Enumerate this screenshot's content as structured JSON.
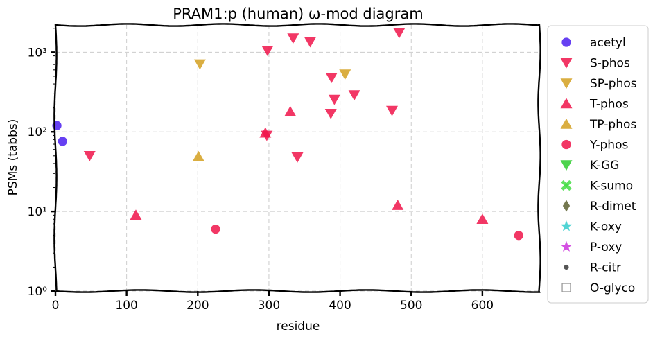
{
  "chart_data": {
    "type": "scatter",
    "title": "PRAM1:p (human) ω-mod diagram",
    "xlabel": "residue",
    "ylabel": "PSMs (tabbs)",
    "xlim": [
      0,
      680
    ],
    "ylim": [
      1,
      2200
    ],
    "yscale": "log",
    "grid": true,
    "legend_position": "right-outside",
    "x_ticks": [
      0,
      100,
      200,
      300,
      400,
      500,
      600
    ],
    "y_ticks": [
      {
        "value": 1,
        "label": "10⁰"
      },
      {
        "value": 10,
        "label": "10¹"
      },
      {
        "value": 100,
        "label": "10²"
      },
      {
        "value": 1000,
        "label": "10³"
      }
    ],
    "series": [
      {
        "name": "acetyl",
        "marker": "circle",
        "color": "#4b1ef0",
        "points": [
          {
            "x": 2,
            "y": 120
          },
          {
            "x": 10,
            "y": 76
          }
        ]
      },
      {
        "name": "S-phos",
        "marker": "triangle-down",
        "color": "#f0144a",
        "points": [
          {
            "x": 48,
            "y": 50
          },
          {
            "x": 298,
            "y": 1050
          },
          {
            "x": 334,
            "y": 1500
          },
          {
            "x": 358,
            "y": 1350
          },
          {
            "x": 483,
            "y": 1750
          },
          {
            "x": 388,
            "y": 480
          },
          {
            "x": 420,
            "y": 290
          },
          {
            "x": 392,
            "y": 255
          },
          {
            "x": 473,
            "y": 185
          },
          {
            "x": 387,
            "y": 170
          },
          {
            "x": 340,
            "y": 48
          },
          {
            "x": 297,
            "y": 90
          }
        ]
      },
      {
        "name": "SP-phos",
        "marker": "triangle-down",
        "color": "#d4a020",
        "points": [
          {
            "x": 203,
            "y": 710
          },
          {
            "x": 407,
            "y": 530
          }
        ]
      },
      {
        "name": "T-phos",
        "marker": "triangle-up",
        "color": "#f0144a",
        "points": [
          {
            "x": 113,
            "y": 9
          },
          {
            "x": 295,
            "y": 97
          },
          {
            "x": 330,
            "y": 180
          },
          {
            "x": 481,
            "y": 12
          },
          {
            "x": 600,
            "y": 8
          }
        ]
      },
      {
        "name": "TP-phos",
        "marker": "triangle-up",
        "color": "#d4a020",
        "points": [
          {
            "x": 201,
            "y": 49
          }
        ]
      },
      {
        "name": "Y-phos",
        "marker": "circle",
        "color": "#f0144a",
        "points": [
          {
            "x": 225,
            "y": 6
          },
          {
            "x": 651,
            "y": 5
          }
        ]
      },
      {
        "name": "K-GG",
        "marker": "triangle-down",
        "color": "#2ecc2e",
        "points": []
      },
      {
        "name": "K-sumo",
        "marker": "x",
        "color": "#44dd44",
        "points": []
      },
      {
        "name": "R-dimet",
        "marker": "diamond",
        "color": "#5c6030",
        "points": []
      },
      {
        "name": "K-oxy",
        "marker": "star",
        "color": "#33cccc",
        "points": []
      },
      {
        "name": "P-oxy",
        "marker": "star",
        "color": "#cc33dd",
        "points": []
      },
      {
        "name": "R-citr",
        "marker": "small-circle",
        "color": "#555555",
        "points": []
      },
      {
        "name": "O-glyco",
        "marker": "square-open",
        "color": "#999999",
        "points": []
      }
    ]
  }
}
